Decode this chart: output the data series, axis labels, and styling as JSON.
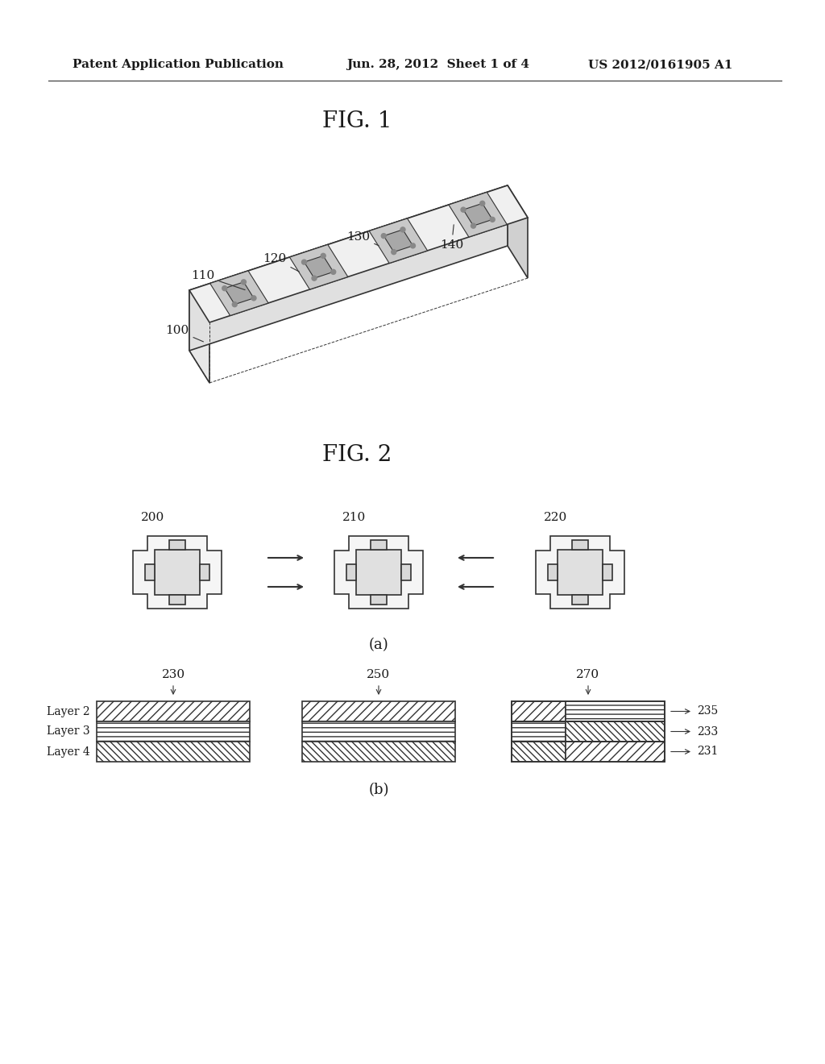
{
  "background_color": "#ffffff",
  "header_left": "Patent Application Publication",
  "header_center": "Jun. 28, 2012  Sheet 1 of 4",
  "header_right": "US 2012/0161905 A1",
  "fig1_title": "FIG. 1",
  "fig2_title": "FIG. 2",
  "fig1_labels": [
    "100",
    "110",
    "120",
    "130",
    "140"
  ],
  "fig2a_labels": [
    "200",
    "210",
    "220"
  ],
  "fig2a_sublabel": "(a)",
  "fig2b_labels": [
    "230",
    "250",
    "270"
  ],
  "fig2b_sublabel": "(b)",
  "fig2b_layer_labels": [
    "Layer 2",
    "Layer 3",
    "Layer 4"
  ],
  "fig2b_right_labels": [
    "235",
    "233",
    "231"
  ]
}
